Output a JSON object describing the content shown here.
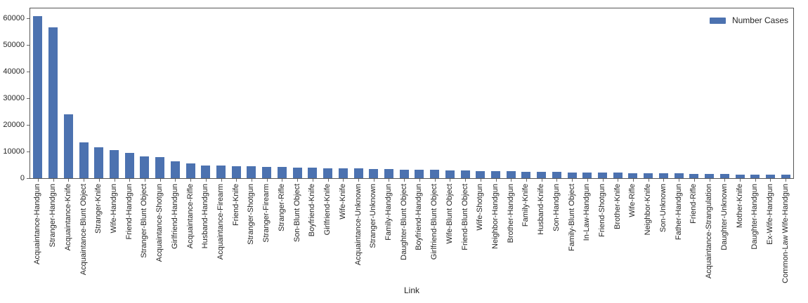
{
  "chart_data": {
    "type": "bar",
    "title": "",
    "xlabel": "Link",
    "ylabel": "",
    "legend": {
      "label": "Number Cases",
      "position": "upper right"
    },
    "ylim": [
      0,
      63800
    ],
    "yticks": [
      0,
      10000,
      20000,
      30000,
      40000,
      50000,
      60000
    ],
    "grid": false,
    "bar_color": "#4C72B0",
    "spine_color": "#555555",
    "tick_color": "#666666",
    "text_color": "#262626",
    "background_color": "#ffffff",
    "categories": [
      "Acquaintance-Handgun",
      "Stranger-Handgun",
      "Acquaintance-Knife",
      "Acquaintance-Blunt Object",
      "Stranger-Knife",
      "Wife-Handgun",
      "Friend-Handgun",
      "Stranger-Blunt Object",
      "Acquaintance-Shotgun",
      "Girlfriend-Handgun",
      "Acquaintance-Rifle",
      "Husband-Handgun",
      "Acquaintance-Firearm",
      "Friend-Knife",
      "Stranger-Shotgun",
      "Stranger-Firearm",
      "Stranger-Rifle",
      "Son-Blunt Object",
      "Boyfriend-Knife",
      "Girlfriend-Knife",
      "Wife-Knife",
      "Acquaintance-Unknown",
      "Stranger-Unknown",
      "Family-Handgun",
      "Daughter-Blunt Object",
      "Boyfriend-Handgun",
      "Girlfriend-Blunt Object",
      "Wife-Blunt Object",
      "Friend-Blunt Object",
      "Wife-Shotgun",
      "Neighbor-Handgun",
      "Brother-Handgun",
      "Family-Knife",
      "Husband-Knife",
      "Son-Handgun",
      "Family-Blunt Object",
      "In-Law-Handgun",
      "Friend-Shotgun",
      "Brother-Knife",
      "Wife-Rifle",
      "Neighbor-Knife",
      "Son-Unknown",
      "Father-Handgun",
      "Friend-Rifle",
      "Acquaintance-Strangulation",
      "Daughter-Unknown",
      "Mother-Knife",
      "Daughter-Handgun",
      "Ex-Wife-Handgun",
      "Common-Law Wife-Handgun"
    ],
    "values": [
      60800,
      56800,
      24000,
      13400,
      11500,
      10600,
      9400,
      8100,
      7800,
      6400,
      5600,
      4800,
      4700,
      4550,
      4400,
      4250,
      4100,
      4000,
      3900,
      3800,
      3700,
      3600,
      3500,
      3400,
      3300,
      3150,
      3050,
      2950,
      2850,
      2750,
      2650,
      2550,
      2450,
      2350,
      2300,
      2250,
      2150,
      2050,
      2000,
      1950,
      1900,
      1800,
      1750,
      1700,
      1600,
      1500,
      1450,
      1400,
      1300,
      1250
    ]
  }
}
